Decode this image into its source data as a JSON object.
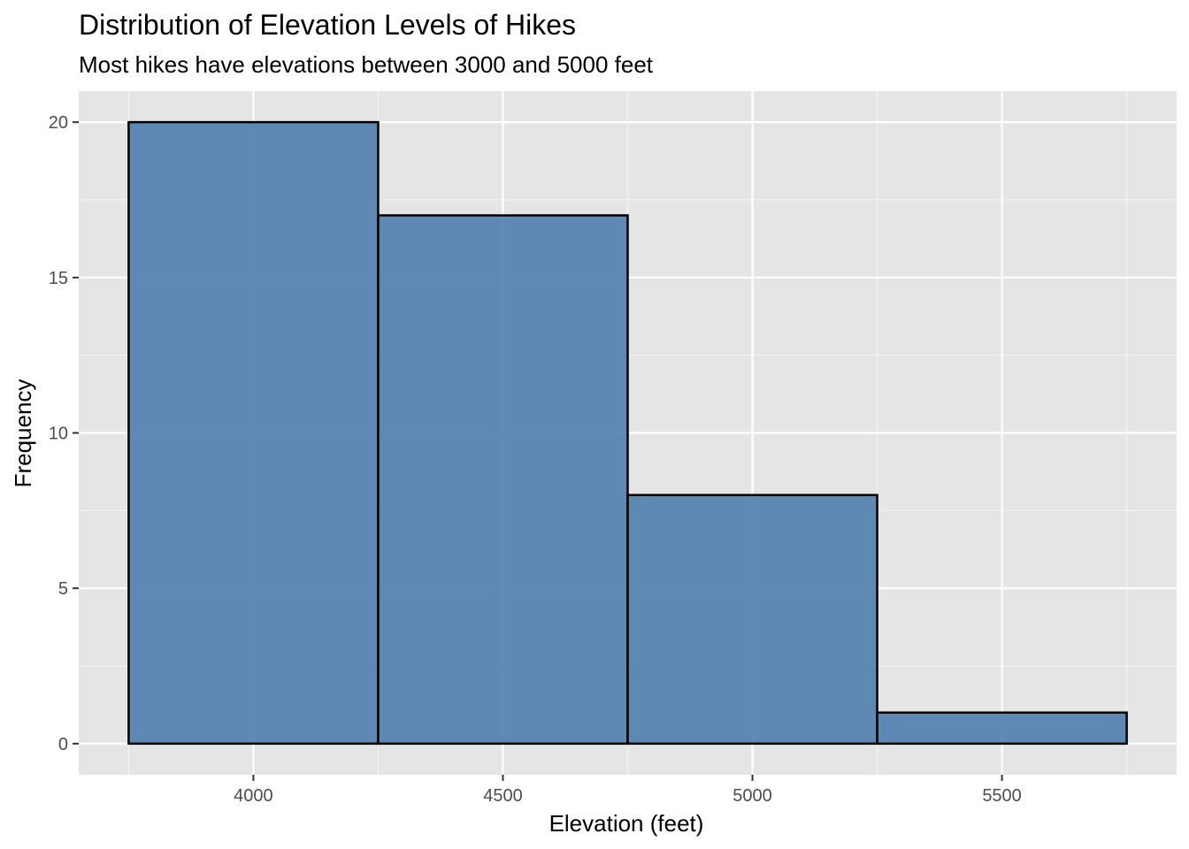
{
  "chart_data": {
    "type": "bar",
    "title": "Distribution of Elevation Levels of Hikes",
    "subtitle": "Most hikes have elevations between 3000 and 5000 feet",
    "xlabel": "Elevation (feet)",
    "ylabel": "Frequency",
    "bins": [
      {
        "x0": 3750,
        "x1": 4250,
        "count": 20
      },
      {
        "x0": 4250,
        "x1": 4750,
        "count": 17
      },
      {
        "x0": 4750,
        "x1": 5250,
        "count": 8
      },
      {
        "x0": 5250,
        "x1": 5750,
        "count": 1
      }
    ],
    "xlim": [
      3650,
      5850
    ],
    "ylim": [
      -1,
      21
    ],
    "x_ticks": [
      4000,
      4500,
      5000,
      5500
    ],
    "y_ticks": [
      0,
      5,
      10,
      15,
      20
    ],
    "grid": true,
    "colors": {
      "bar_fill": "#4f7eae",
      "bar_outline": "#000000",
      "panel_bg": "#e5e5e5",
      "grid_major": "#ffffff",
      "grid_minor": "#f2f2f2"
    }
  }
}
